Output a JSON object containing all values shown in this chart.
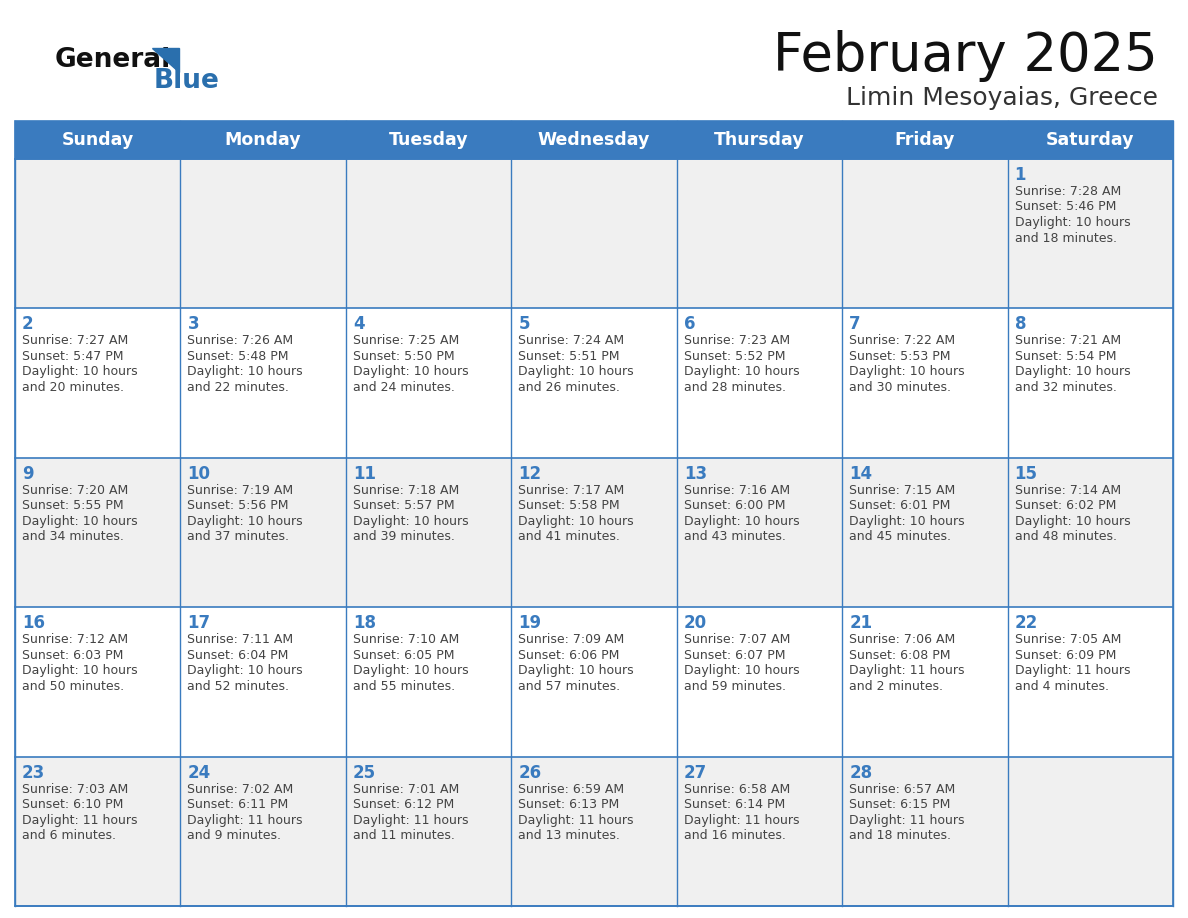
{
  "title": "February 2025",
  "subtitle": "Limin Mesoyaias, Greece",
  "days_of_week": [
    "Sunday",
    "Monday",
    "Tuesday",
    "Wednesday",
    "Thursday",
    "Friday",
    "Saturday"
  ],
  "header_bg": "#3a7bbf",
  "header_text": "#ffffff",
  "row_bg_odd": "#f0f0f0",
  "row_bg_even": "#ffffff",
  "border_color": "#3a7bbf",
  "day_num_color": "#3a7bbf",
  "text_color": "#444444",
  "title_color": "#111111",
  "subtitle_color": "#333333",
  "logo_general_color": "#111111",
  "logo_blue_color": "#2a6fad",
  "calendar": [
    [
      null,
      null,
      null,
      null,
      null,
      null,
      {
        "day": 1,
        "sunrise": "7:28 AM",
        "sunset": "5:46 PM",
        "daylight_line1": "Daylight: 10 hours",
        "daylight_line2": "and 18 minutes."
      }
    ],
    [
      {
        "day": 2,
        "sunrise": "7:27 AM",
        "sunset": "5:47 PM",
        "daylight_line1": "Daylight: 10 hours",
        "daylight_line2": "and 20 minutes."
      },
      {
        "day": 3,
        "sunrise": "7:26 AM",
        "sunset": "5:48 PM",
        "daylight_line1": "Daylight: 10 hours",
        "daylight_line2": "and 22 minutes."
      },
      {
        "day": 4,
        "sunrise": "7:25 AM",
        "sunset": "5:50 PM",
        "daylight_line1": "Daylight: 10 hours",
        "daylight_line2": "and 24 minutes."
      },
      {
        "day": 5,
        "sunrise": "7:24 AM",
        "sunset": "5:51 PM",
        "daylight_line1": "Daylight: 10 hours",
        "daylight_line2": "and 26 minutes."
      },
      {
        "day": 6,
        "sunrise": "7:23 AM",
        "sunset": "5:52 PM",
        "daylight_line1": "Daylight: 10 hours",
        "daylight_line2": "and 28 minutes."
      },
      {
        "day": 7,
        "sunrise": "7:22 AM",
        "sunset": "5:53 PM",
        "daylight_line1": "Daylight: 10 hours",
        "daylight_line2": "and 30 minutes."
      },
      {
        "day": 8,
        "sunrise": "7:21 AM",
        "sunset": "5:54 PM",
        "daylight_line1": "Daylight: 10 hours",
        "daylight_line2": "and 32 minutes."
      }
    ],
    [
      {
        "day": 9,
        "sunrise": "7:20 AM",
        "sunset": "5:55 PM",
        "daylight_line1": "Daylight: 10 hours",
        "daylight_line2": "and 34 minutes."
      },
      {
        "day": 10,
        "sunrise": "7:19 AM",
        "sunset": "5:56 PM",
        "daylight_line1": "Daylight: 10 hours",
        "daylight_line2": "and 37 minutes."
      },
      {
        "day": 11,
        "sunrise": "7:18 AM",
        "sunset": "5:57 PM",
        "daylight_line1": "Daylight: 10 hours",
        "daylight_line2": "and 39 minutes."
      },
      {
        "day": 12,
        "sunrise": "7:17 AM",
        "sunset": "5:58 PM",
        "daylight_line1": "Daylight: 10 hours",
        "daylight_line2": "and 41 minutes."
      },
      {
        "day": 13,
        "sunrise": "7:16 AM",
        "sunset": "6:00 PM",
        "daylight_line1": "Daylight: 10 hours",
        "daylight_line2": "and 43 minutes."
      },
      {
        "day": 14,
        "sunrise": "7:15 AM",
        "sunset": "6:01 PM",
        "daylight_line1": "Daylight: 10 hours",
        "daylight_line2": "and 45 minutes."
      },
      {
        "day": 15,
        "sunrise": "7:14 AM",
        "sunset": "6:02 PM",
        "daylight_line1": "Daylight: 10 hours",
        "daylight_line2": "and 48 minutes."
      }
    ],
    [
      {
        "day": 16,
        "sunrise": "7:12 AM",
        "sunset": "6:03 PM",
        "daylight_line1": "Daylight: 10 hours",
        "daylight_line2": "and 50 minutes."
      },
      {
        "day": 17,
        "sunrise": "7:11 AM",
        "sunset": "6:04 PM",
        "daylight_line1": "Daylight: 10 hours",
        "daylight_line2": "and 52 minutes."
      },
      {
        "day": 18,
        "sunrise": "7:10 AM",
        "sunset": "6:05 PM",
        "daylight_line1": "Daylight: 10 hours",
        "daylight_line2": "and 55 minutes."
      },
      {
        "day": 19,
        "sunrise": "7:09 AM",
        "sunset": "6:06 PM",
        "daylight_line1": "Daylight: 10 hours",
        "daylight_line2": "and 57 minutes."
      },
      {
        "day": 20,
        "sunrise": "7:07 AM",
        "sunset": "6:07 PM",
        "daylight_line1": "Daylight: 10 hours",
        "daylight_line2": "and 59 minutes."
      },
      {
        "day": 21,
        "sunrise": "7:06 AM",
        "sunset": "6:08 PM",
        "daylight_line1": "Daylight: 11 hours",
        "daylight_line2": "and 2 minutes."
      },
      {
        "day": 22,
        "sunrise": "7:05 AM",
        "sunset": "6:09 PM",
        "daylight_line1": "Daylight: 11 hours",
        "daylight_line2": "and 4 minutes."
      }
    ],
    [
      {
        "day": 23,
        "sunrise": "7:03 AM",
        "sunset": "6:10 PM",
        "daylight_line1": "Daylight: 11 hours",
        "daylight_line2": "and 6 minutes."
      },
      {
        "day": 24,
        "sunrise": "7:02 AM",
        "sunset": "6:11 PM",
        "daylight_line1": "Daylight: 11 hours",
        "daylight_line2": "and 9 minutes."
      },
      {
        "day": 25,
        "sunrise": "7:01 AM",
        "sunset": "6:12 PM",
        "daylight_line1": "Daylight: 11 hours",
        "daylight_line2": "and 11 minutes."
      },
      {
        "day": 26,
        "sunrise": "6:59 AM",
        "sunset": "6:13 PM",
        "daylight_line1": "Daylight: 11 hours",
        "daylight_line2": "and 13 minutes."
      },
      {
        "day": 27,
        "sunrise": "6:58 AM",
        "sunset": "6:14 PM",
        "daylight_line1": "Daylight: 11 hours",
        "daylight_line2": "and 16 minutes."
      },
      {
        "day": 28,
        "sunrise": "6:57 AM",
        "sunset": "6:15 PM",
        "daylight_line1": "Daylight: 11 hours",
        "daylight_line2": "and 18 minutes."
      },
      null
    ]
  ],
  "fig_width": 11.88,
  "fig_height": 9.18
}
